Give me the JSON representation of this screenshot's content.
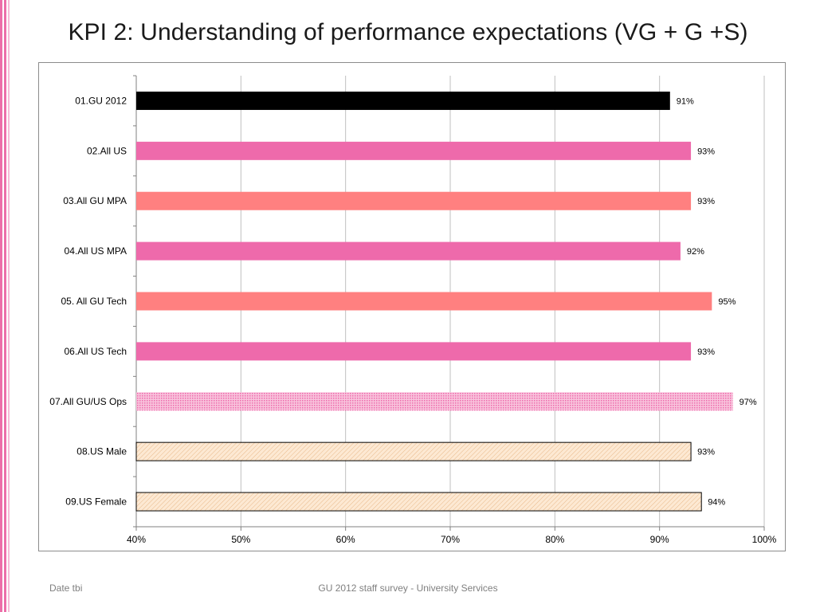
{
  "slide": {
    "title": "KPI 2: Understanding of performance expectations (VG + G +S)",
    "footer_left": "Date tbi",
    "footer_center": "GU 2012 staff survey -  University Services"
  },
  "chart_data": {
    "type": "bar",
    "orientation": "horizontal",
    "title": "KPI 2: Understanding of performance expectations (VG + G +S)",
    "xlabel": "",
    "ylabel": "",
    "xlim": [
      40,
      100
    ],
    "x_ticks": [
      40,
      50,
      60,
      70,
      80,
      90,
      100
    ],
    "x_tick_labels": [
      "40%",
      "50%",
      "60%",
      "70%",
      "80%",
      "90%",
      "100%"
    ],
    "grid": true,
    "legend": "none",
    "categories": [
      "01.GU 2012",
      "02.All US",
      "03.All GU MPA",
      "04.All US MPA",
      "05. All GU Tech",
      "06.All US Tech",
      "07.All GU/US Ops",
      "08.US Male",
      "09.US Female"
    ],
    "values": [
      91,
      93,
      93,
      92,
      95,
      93,
      97,
      93,
      94
    ],
    "data_labels": [
      "91%",
      "93%",
      "93%",
      "92%",
      "95%",
      "93%",
      "97%",
      "93%",
      "94%"
    ],
    "bar_styles": [
      "black",
      "pink",
      "salmon",
      "pink",
      "salmon",
      "pink",
      "pink-dotted",
      "peach-hatched",
      "peach-hatched"
    ],
    "colors": {
      "black": "#000000",
      "pink": "#ee6aab",
      "salmon": "#ff8080",
      "pink_dotted": "#f49cc8",
      "peach": "#fce4c8",
      "grid": "#bfbfbf",
      "axis": "#808080",
      "stripe": "#ec6fa9"
    }
  }
}
